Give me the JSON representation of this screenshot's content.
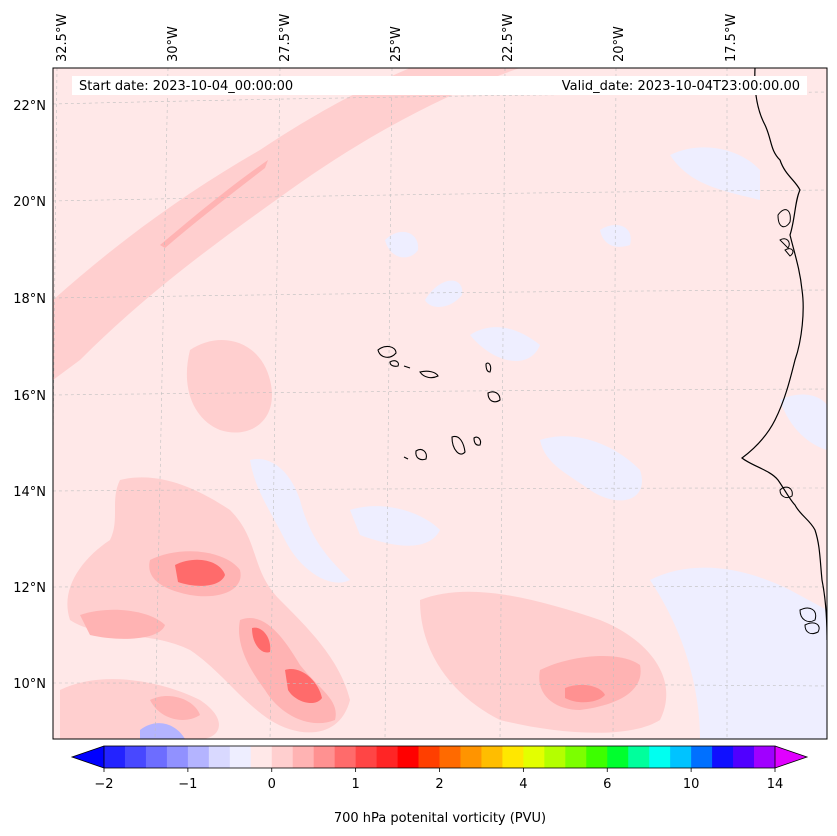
{
  "header": {
    "start_label": "Start date: 2023-10-04_00:00:00",
    "valid_label": "Valid_date: 2023-10-04T23:00:00.00"
  },
  "map": {
    "longitude_labels": [
      "32.5°W",
      "30°W",
      "27.5°W",
      "25°W",
      "22.5°W",
      "20°W",
      "17.5°W"
    ],
    "latitude_labels": [
      "22°N",
      "20°N",
      "18°N",
      "16°N",
      "14°N",
      "12°N",
      "10°N"
    ],
    "field": "700 hPa potential vorticity",
    "extent": {
      "lon_min": -33.0,
      "lon_max": -15.5,
      "lat_min": 8.8,
      "lat_max": 22.8
    }
  },
  "colorbar": {
    "label": "700 hPa potenital vorticity (PVU)",
    "tick_labels": [
      "−2",
      "−1",
      "0",
      "1",
      "2",
      "4",
      "6",
      "10",
      "14"
    ],
    "colors": [
      "#0000ff",
      "#2323ff",
      "#4848ff",
      "#6d6dff",
      "#9191ff",
      "#b4b4ff",
      "#d9d9ff",
      "#eeeeff",
      "#ffe8e8",
      "#ffcfcf",
      "#ffb3b3",
      "#ff9191",
      "#ff6b6b",
      "#ff4545",
      "#ff2525",
      "#ff0000",
      "#ff3f00",
      "#ff6a00",
      "#ff9400",
      "#ffbd00",
      "#ffe700",
      "#e3ff00",
      "#b4ff00",
      "#7cff00",
      "#3dff00",
      "#00ff2e",
      "#00ff9c",
      "#00fff0",
      "#00c3ff",
      "#0070ff",
      "#1010ff",
      "#5000ff",
      "#a000ff",
      "#e000ff"
    ],
    "extend": "both"
  },
  "style": {
    "background_pv": "#ffe8e8",
    "negative_pv": "#eeeeff",
    "coast": "#000000"
  }
}
